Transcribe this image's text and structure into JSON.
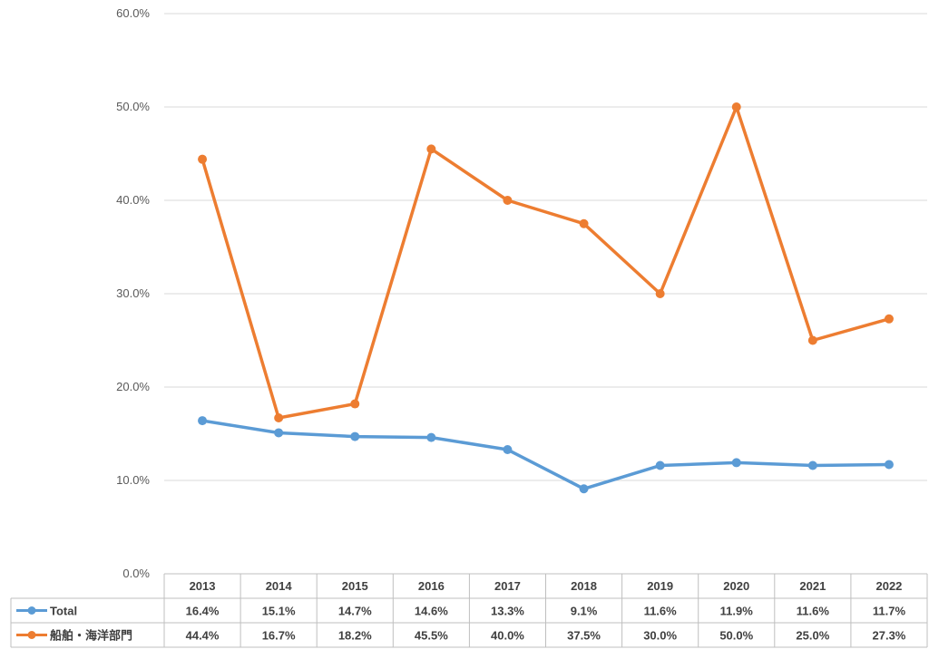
{
  "chart_data": {
    "type": "line",
    "categories": [
      "2013",
      "2014",
      "2015",
      "2016",
      "2017",
      "2018",
      "2019",
      "2020",
      "2021",
      "2022"
    ],
    "series": [
      {
        "name": "Total",
        "color": "#5B9BD5",
        "values": [
          16.4,
          15.1,
          14.7,
          14.6,
          13.3,
          9.1,
          11.6,
          11.9,
          11.6,
          11.7
        ],
        "labels": [
          "16.4%",
          "15.1%",
          "14.7%",
          "14.6%",
          "13.3%",
          "9.1%",
          "11.6%",
          "11.9%",
          "11.6%",
          "11.7%"
        ]
      },
      {
        "name": "船舶・海洋部門",
        "color": "#ED7D31",
        "values": [
          44.4,
          16.7,
          18.2,
          45.5,
          40.0,
          37.5,
          30.0,
          50.0,
          25.0,
          27.3
        ],
        "labels": [
          "44.4%",
          "16.7%",
          "18.2%",
          "45.5%",
          "40.0%",
          "37.5%",
          "30.0%",
          "50.0%",
          "25.0%",
          "27.3%"
        ]
      }
    ],
    "ylim": [
      0,
      60
    ],
    "yticks": [
      "0.0%",
      "10.0%",
      "20.0%",
      "30.0%",
      "40.0%",
      "50.0%",
      "60.0%"
    ],
    "grid": true,
    "legend": "data-table"
  }
}
